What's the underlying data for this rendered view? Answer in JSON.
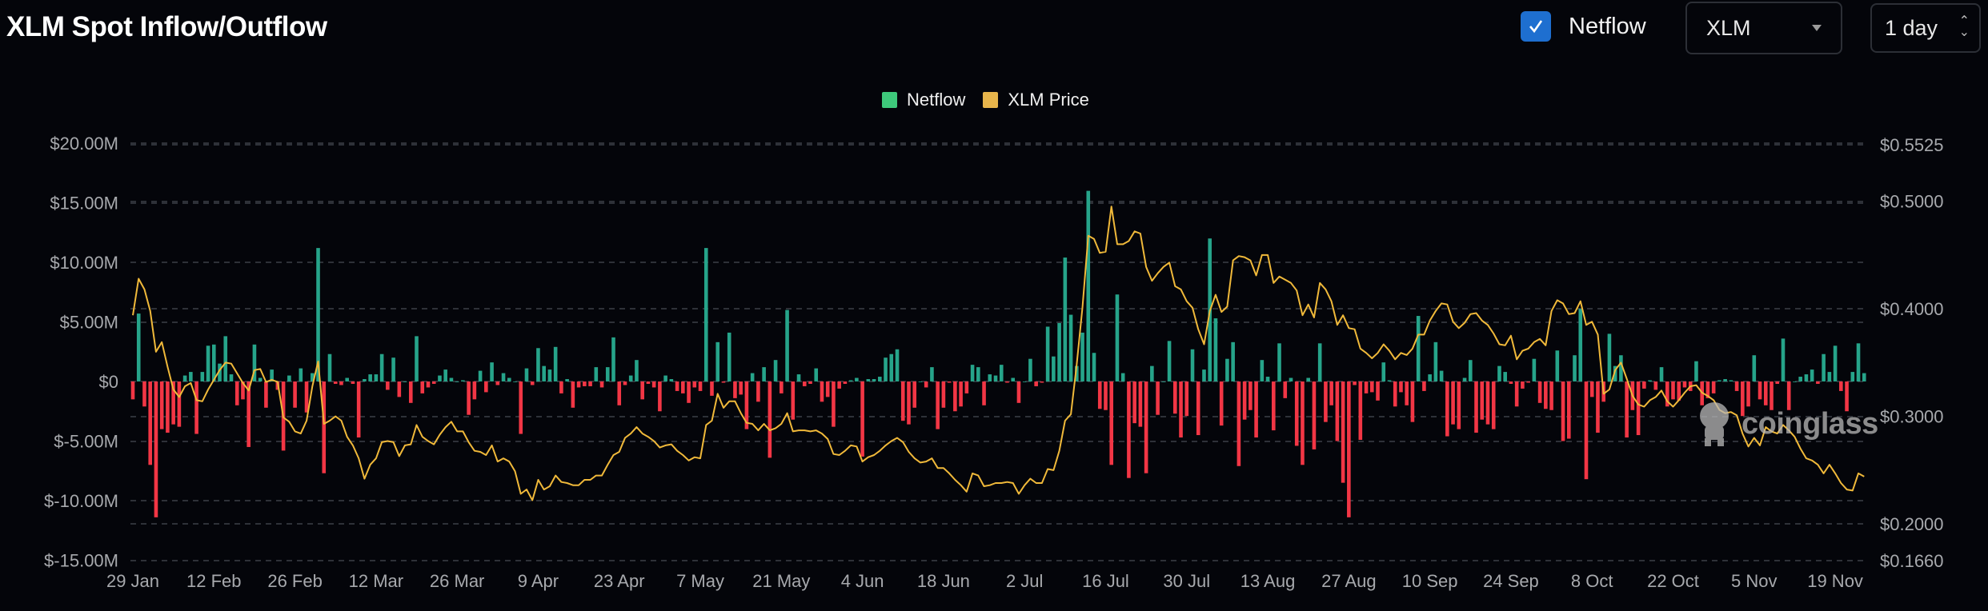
{
  "header": {
    "title": "XLM Spot Inflow/Outflow",
    "netflow_toggle": {
      "label": "Netflow",
      "checked": true
    },
    "coin_select": {
      "value": "XLM"
    },
    "interval_select": {
      "value": "1 day"
    }
  },
  "watermark": {
    "brand": "coinglass"
  },
  "colors": {
    "inflow": "#26a48a",
    "outflow": "#f23645",
    "price": "#f0b93a",
    "legend_netflow": "#3ec97b",
    "legend_price": "#e8b54b",
    "checkbox": "#1e6fd0"
  },
  "chart_data": {
    "type": "bar+line",
    "legend": {
      "position": "top-center",
      "items": [
        "Netflow",
        "XLM Price"
      ]
    },
    "grid": true,
    "x_ticks": [
      "29 Jan",
      "12 Feb",
      "26 Feb",
      "12 Mar",
      "26 Mar",
      "9 Apr",
      "23 Apr",
      "7 May",
      "21 May",
      "4 Jun",
      "18 Jun",
      "2 Jul",
      "16 Jul",
      "30 Jul",
      "13 Aug",
      "27 Aug",
      "10 Sep",
      "24 Sep",
      "8 Oct",
      "22 Oct",
      "5 Nov",
      "19 Nov"
    ],
    "y_left": {
      "ticks": [
        "$20.00M",
        "$15.00M",
        "$10.00M",
        "$5.00M",
        "$0",
        "$-5.00M",
        "$-10.00M",
        "$-15.00M"
      ],
      "tick_values": [
        20,
        15,
        10,
        5,
        0,
        -5,
        -10,
        -15
      ],
      "range": [
        -15,
        20
      ],
      "unit": "USD millions"
    },
    "y_right": {
      "ticks": [
        "$0.5525",
        "$0.5000",
        "$0.4000",
        "$0.3000",
        "$0.2000",
        "$0.1660"
      ],
      "tick_values": [
        0.5525,
        0.5,
        0.4,
        0.3,
        0.2,
        0.166
      ],
      "range": [
        0.166,
        0.5525
      ]
    },
    "dates": [
      "29 Jan",
      "30 Jan",
      "31 Jan",
      "1 Feb",
      "2 Feb",
      "3 Feb",
      "4 Feb",
      "5 Feb",
      "6 Feb",
      "7 Feb",
      "8 Feb",
      "9 Feb",
      "10 Feb",
      "11 Feb",
      "12 Feb",
      "13 Feb",
      "14 Feb",
      "15 Feb",
      "16 Feb",
      "17 Feb",
      "18 Feb",
      "19 Feb",
      "20 Feb",
      "21 Feb",
      "22 Feb",
      "23 Feb",
      "24 Feb",
      "25 Feb",
      "26 Feb",
      "27 Feb",
      "28 Feb",
      "1 Mar",
      "2 Mar",
      "3 Mar",
      "4 Mar",
      "5 Mar",
      "6 Mar",
      "7 Mar",
      "8 Mar",
      "9 Mar",
      "10 Mar",
      "11 Mar",
      "12 Mar",
      "13 Mar",
      "14 Mar",
      "15 Mar",
      "16 Mar",
      "17 Mar",
      "18 Mar",
      "19 Mar",
      "20 Mar",
      "21 Mar",
      "22 Mar",
      "23 Mar",
      "24 Mar",
      "25 Mar",
      "26 Mar",
      "27 Mar",
      "28 Mar",
      "29 Mar",
      "30 Mar",
      "31 Mar",
      "1 Apr",
      "2 Apr",
      "3 Apr",
      "4 Apr",
      "5 Apr",
      "6 Apr",
      "7 Apr",
      "8 Apr",
      "9 Apr",
      "10 Apr",
      "11 Apr",
      "12 Apr",
      "13 Apr",
      "14 Apr",
      "15 Apr",
      "16 Apr",
      "17 Apr",
      "18 Apr",
      "19 Apr",
      "20 Apr",
      "21 Apr",
      "22 Apr",
      "23 Apr",
      "24 Apr",
      "25 Apr",
      "26 Apr",
      "27 Apr",
      "28 Apr",
      "29 Apr",
      "30 Apr",
      "1 May",
      "2 May",
      "3 May",
      "4 May",
      "5 May",
      "6 May",
      "7 May",
      "8 May",
      "9 May",
      "10 May",
      "11 May",
      "12 May",
      "13 May",
      "14 May",
      "15 May",
      "16 May",
      "17 May",
      "18 May",
      "19 May",
      "20 May",
      "21 May",
      "22 May",
      "23 May",
      "24 May",
      "25 May",
      "26 May",
      "27 May",
      "28 May",
      "29 May",
      "30 May",
      "31 May",
      "1 Jun",
      "2 Jun",
      "3 Jun",
      "4 Jun",
      "5 Jun",
      "6 Jun",
      "7 Jun",
      "8 Jun",
      "9 Jun",
      "10 Jun",
      "11 Jun",
      "12 Jun",
      "13 Jun",
      "14 Jun",
      "15 Jun",
      "16 Jun",
      "17 Jun",
      "18 Jun",
      "19 Jun",
      "20 Jun",
      "21 Jun",
      "22 Jun",
      "23 Jun",
      "24 Jun",
      "25 Jun",
      "26 Jun",
      "27 Jun",
      "28 Jun",
      "29 Jun",
      "30 Jun",
      "1 Jul",
      "2 Jul",
      "3 Jul",
      "4 Jul",
      "5 Jul",
      "6 Jul",
      "7 Jul",
      "8 Jul",
      "9 Jul",
      "10 Jul",
      "11 Jul",
      "12 Jul",
      "13 Jul",
      "14 Jul",
      "15 Jul",
      "16 Jul",
      "17 Jul",
      "18 Jul",
      "19 Jul",
      "20 Jul",
      "21 Jul",
      "22 Jul",
      "23 Jul",
      "24 Jul",
      "25 Jul",
      "26 Jul",
      "27 Jul",
      "28 Jul",
      "29 Jul",
      "30 Jul",
      "31 Jul",
      "1 Aug",
      "2 Aug",
      "3 Aug",
      "4 Aug",
      "5 Aug",
      "6 Aug",
      "7 Aug",
      "8 Aug",
      "9 Aug",
      "10 Aug",
      "11 Aug",
      "12 Aug",
      "13 Aug",
      "14 Aug",
      "15 Aug",
      "16 Aug",
      "17 Aug",
      "18 Aug",
      "19 Aug",
      "20 Aug",
      "21 Aug",
      "22 Aug",
      "23 Aug",
      "24 Aug",
      "25 Aug",
      "26 Aug",
      "27 Aug",
      "28 Aug",
      "29 Aug",
      "30 Aug",
      "31 Aug",
      "1 Sep",
      "2 Sep",
      "3 Sep",
      "4 Sep",
      "5 Sep",
      "6 Sep",
      "7 Sep",
      "8 Sep",
      "9 Sep",
      "10 Sep",
      "11 Sep",
      "12 Sep",
      "13 Sep",
      "14 Sep",
      "15 Sep",
      "16 Sep",
      "17 Sep",
      "18 Sep",
      "19 Sep",
      "20 Sep",
      "21 Sep",
      "22 Sep",
      "23 Sep",
      "24 Sep",
      "25 Sep",
      "26 Sep",
      "27 Sep",
      "28 Sep",
      "29 Sep",
      "30 Sep",
      "1 Oct",
      "2 Oct",
      "3 Oct",
      "4 Oct",
      "5 Oct",
      "6 Oct",
      "7 Oct",
      "8 Oct",
      "9 Oct",
      "10 Oct",
      "11 Oct",
      "12 Oct",
      "13 Oct",
      "14 Oct",
      "15 Oct",
      "16 Oct",
      "17 Oct",
      "18 Oct",
      "19 Oct",
      "20 Oct",
      "21 Oct",
      "22 Oct",
      "23 Oct",
      "24 Oct",
      "25 Oct",
      "26 Oct",
      "27 Oct",
      "28 Oct",
      "29 Oct",
      "30 Oct",
      "31 Oct",
      "1 Nov",
      "2 Nov",
      "3 Nov",
      "4 Nov",
      "5 Nov",
      "6 Nov",
      "7 Nov",
      "8 Nov",
      "9 Nov",
      "10 Nov",
      "11 Nov",
      "12 Nov",
      "13 Nov",
      "14 Nov",
      "15 Nov",
      "16 Nov",
      "17 Nov",
      "18 Nov",
      "19 Nov",
      "20 Nov",
      "21 Nov",
      "22 Nov",
      "23 Nov",
      "24 Nov"
    ],
    "series": [
      {
        "name": "Netflow",
        "type": "bar",
        "axis": "left",
        "values": [
          -1.5,
          5.7,
          -2.1,
          -7.0,
          -11.4,
          -4.0,
          -4.3,
          -3.6,
          -3.8,
          0.5,
          0.8,
          -4.4,
          0.8,
          3.0,
          3.1,
          1.5,
          3.8,
          0.6,
          -2.0,
          -1.5,
          -5.5,
          3.1,
          0.3,
          -2.2,
          1.0,
          -0.7,
          -5.8,
          0.5,
          -2.2,
          1.1,
          -2.6,
          0.7,
          11.2,
          -7.7,
          2.3,
          -0.2,
          -0.3,
          0.3,
          -0.2,
          -4.7,
          0.2,
          0.6,
          0.6,
          2.3,
          -0.7,
          2.0,
          -1.3,
          0,
          -1.8,
          3.8,
          -1.0,
          -0.5,
          -0.2,
          0.5,
          1.0,
          0.3,
          0,
          0.1,
          -2.8,
          -1.5,
          0.9,
          -0.9,
          1.6,
          -0.3,
          0.7,
          0.3,
          0,
          -4.4,
          1.1,
          -0.3,
          2.8,
          1.3,
          1.0,
          2.9,
          -1.0,
          0.2,
          -2.2,
          -0.5,
          -0.4,
          -0.4,
          1.2,
          -0.5,
          1.2,
          3.7,
          -2.0,
          -0.3,
          0.5,
          1.8,
          -1.5,
          -0.2,
          -0.5,
          -2.5,
          0.5,
          0.2,
          -0.8,
          -1.0,
          -1.8,
          -0.5,
          -0.8,
          11.2,
          -1.2,
          3.3,
          -0.1,
          4.1,
          -1.4,
          -1.1,
          -4.0,
          0.7,
          -1.7,
          1.2,
          -6.4,
          1.8,
          -1.0,
          6.0,
          -3.2,
          0.6,
          -0.4,
          -0.2,
          1.1,
          -1.7,
          -1.3,
          -3.8,
          -0.6,
          -0.2,
          0.1,
          0.3,
          -6.3,
          0.2,
          0.2,
          0.4,
          2.0,
          2.3,
          2.7,
          -3.3,
          -3.6,
          -2.2,
          0,
          -0.5,
          1.2,
          -4.0,
          -2.2,
          -0.1,
          -2.5,
          -2.1,
          -1.0,
          1.4,
          1.2,
          -2.0,
          0.6,
          0.5,
          1.4,
          -0.1,
          0.3,
          -1.8,
          0,
          1.9,
          -0.4,
          -0.1,
          4.6,
          2.1,
          4.9,
          10.4,
          5.6,
          1.3,
          4.1,
          16.0,
          2.4,
          -2.3,
          -2.4,
          -7.0,
          7.3,
          0.7,
          -8.1,
          -3.5,
          -3.8,
          -7.7,
          1.3,
          -2.8,
          0,
          3.4,
          -2.7,
          -4.7,
          -2.9,
          2.7,
          -4.5,
          1.0,
          12.0,
          5.3,
          -3.7,
          1.9,
          3.3,
          -7.1,
          -3.2,
          -2.4,
          -4.7,
          1.8,
          0.4,
          -4.1,
          3.2,
          -1.4,
          0.3,
          -5.4,
          -7.0,
          0.3,
          -5.7,
          3.2,
          -3.4,
          -2.0,
          -5.0,
          -8.5,
          -11.4,
          -0.3,
          -4.9,
          -1.0,
          -0.9,
          -1.6,
          1.6,
          0.1,
          -2.1,
          -0.9,
          -2.0,
          -3.4,
          5.5,
          -0.8,
          0.6,
          3.3,
          0.9,
          -4.6,
          -3.6,
          -4.0,
          0.3,
          1.8,
          -4.3,
          -3.2,
          -3.6,
          -4.0,
          1.3,
          0.8,
          -0.2,
          -2.1,
          -0.6,
          -0.1,
          1.9,
          -1.8,
          -2.3,
          -2.4,
          2.6,
          -5.0,
          -4.8,
          2.2,
          6.1,
          -8.2,
          -1.3,
          -4.3,
          -1.7,
          4.0,
          1.3,
          2.2,
          -4.7,
          -2.4,
          -4.5,
          -0.6,
          0.1,
          -0.7,
          1.2,
          -2.1,
          -1.5,
          -1.6,
          -0.5,
          -0.8,
          1.7,
          -2.0,
          -1.4,
          -1.0,
          0.1,
          0.2,
          0.1,
          -0.8,
          -2.9,
          -2.1,
          2.2,
          -1.5,
          -2.0,
          -2.4,
          -0.2,
          3.6,
          -2.4,
          0,
          0.4,
          0.6,
          1.0,
          -0.2,
          2.3,
          0.8,
          3.0,
          -0.8,
          -2.5,
          0.8,
          3.2,
          0.7
        ]
      },
      {
        "name": "XLM Price",
        "type": "line",
        "axis": "right",
        "values": [
          0.394,
          0.428,
          0.418,
          0.398,
          0.36,
          0.369,
          0.346,
          0.325,
          0.318,
          0.328,
          0.331,
          0.315,
          0.314,
          0.325,
          0.334,
          0.343,
          0.35,
          0.349,
          0.34,
          0.331,
          0.324,
          0.343,
          0.344,
          0.332,
          0.334,
          0.332,
          0.299,
          0.295,
          0.286,
          0.284,
          0.296,
          0.328,
          0.351,
          0.293,
          0.296,
          0.3,
          0.296,
          0.281,
          0.273,
          0.261,
          0.242,
          0.255,
          0.261,
          0.276,
          0.277,
          0.276,
          0.263,
          0.273,
          0.274,
          0.292,
          0.281,
          0.277,
          0.274,
          0.283,
          0.29,
          0.295,
          0.286,
          0.286,
          0.276,
          0.268,
          0.267,
          0.264,
          0.273,
          0.258,
          0.261,
          0.258,
          0.249,
          0.228,
          0.232,
          0.222,
          0.241,
          0.232,
          0.235,
          0.245,
          0.239,
          0.238,
          0.236,
          0.236,
          0.241,
          0.241,
          0.245,
          0.245,
          0.255,
          0.264,
          0.267,
          0.28,
          0.284,
          0.29,
          0.284,
          0.281,
          0.277,
          0.271,
          0.273,
          0.274,
          0.268,
          0.264,
          0.259,
          0.262,
          0.261,
          0.292,
          0.296,
          0.321,
          0.308,
          0.314,
          0.314,
          0.303,
          0.294,
          0.293,
          0.287,
          0.293,
          0.287,
          0.289,
          0.293,
          0.303,
          0.286,
          0.287,
          0.287,
          0.286,
          0.287,
          0.284,
          0.279,
          0.265,
          0.264,
          0.268,
          0.273,
          0.272,
          0.258,
          0.262,
          0.264,
          0.268,
          0.273,
          0.277,
          0.28,
          0.276,
          0.267,
          0.261,
          0.257,
          0.258,
          0.261,
          0.252,
          0.252,
          0.247,
          0.241,
          0.236,
          0.23,
          0.247,
          0.245,
          0.235,
          0.236,
          0.238,
          0.238,
          0.239,
          0.238,
          0.228,
          0.236,
          0.242,
          0.238,
          0.238,
          0.251,
          0.25,
          0.268,
          0.296,
          0.302,
          0.348,
          0.401,
          0.468,
          0.465,
          0.452,
          0.453,
          0.495,
          0.46,
          0.46,
          0.463,
          0.472,
          0.47,
          0.439,
          0.426,
          0.433,
          0.439,
          0.443,
          0.421,
          0.418,
          0.407,
          0.401,
          0.381,
          0.367,
          0.398,
          0.413,
          0.397,
          0.402,
          0.445,
          0.449,
          0.448,
          0.445,
          0.431,
          0.45,
          0.45,
          0.424,
          0.43,
          0.427,
          0.424,
          0.417,
          0.394,
          0.404,
          0.392,
          0.424,
          0.418,
          0.407,
          0.385,
          0.394,
          0.382,
          0.381,
          0.363,
          0.359,
          0.354,
          0.359,
          0.367,
          0.361,
          0.353,
          0.359,
          0.357,
          0.363,
          0.376,
          0.376,
          0.389,
          0.398,
          0.405,
          0.404,
          0.388,
          0.382,
          0.387,
          0.395,
          0.396,
          0.389,
          0.385,
          0.377,
          0.367,
          0.366,
          0.375,
          0.353,
          0.361,
          0.363,
          0.369,
          0.372,
          0.366,
          0.398,
          0.408,
          0.405,
          0.395,
          0.396,
          0.407,
          0.385,
          0.388,
          0.376,
          0.321,
          0.325,
          0.343,
          0.35,
          0.335,
          0.319,
          0.311,
          0.309,
          0.315,
          0.318,
          0.324,
          0.314,
          0.309,
          0.315,
          0.322,
          0.328,
          0.329,
          0.322,
          0.319,
          0.315,
          0.306,
          0.303,
          0.304,
          0.301,
          0.284,
          0.272,
          0.28,
          0.273,
          0.29,
          0.286,
          0.284,
          0.292,
          0.287,
          0.281,
          0.27,
          0.261,
          0.259,
          0.255,
          0.247,
          0.255,
          0.247,
          0.238,
          0.232,
          0.231,
          0.247,
          0.244
        ]
      }
    ]
  }
}
